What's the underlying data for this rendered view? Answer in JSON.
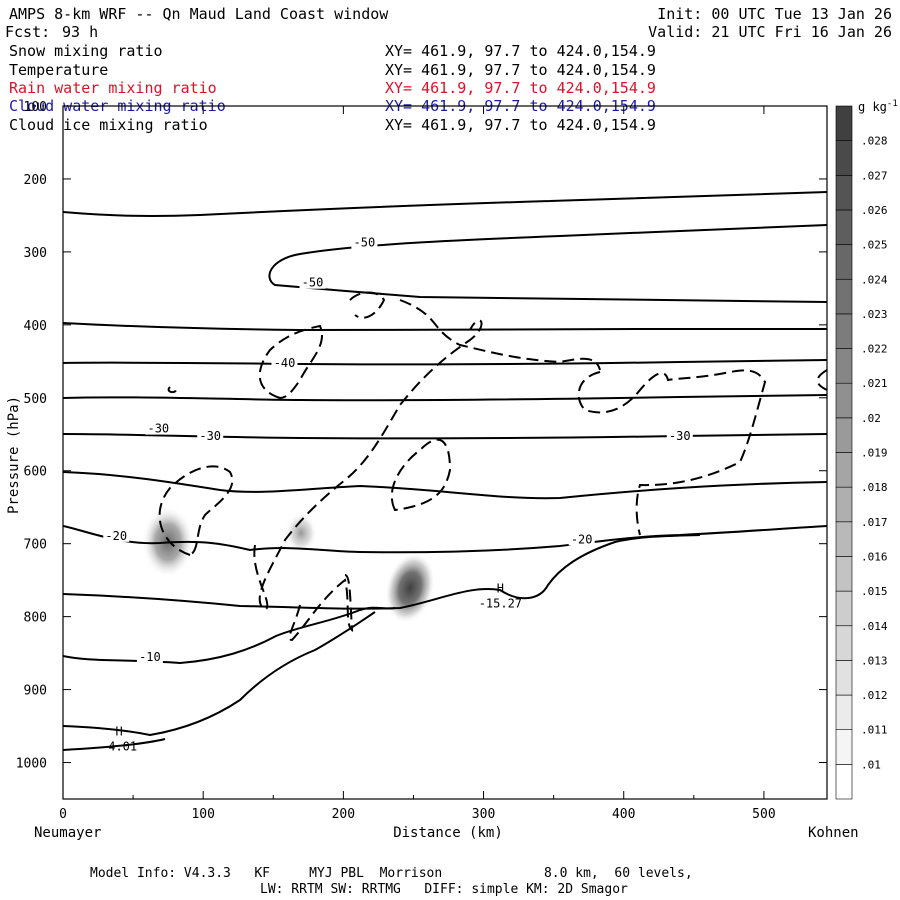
{
  "header": {
    "title": "AMPS 8-km WRF -- Qn Maud Land Coast window",
    "fcst_label": "Fcst:",
    "fcst_value": "93 h",
    "init": "Init: 00 UTC Tue 13 Jan 26",
    "valid": "Valid: 21 UTC Fri 16 Jan 26"
  },
  "fields": [
    {
      "name": "Snow mixing ratio",
      "xy": "XY= 461.9, 97.7 to 424.0,154.9",
      "color": "#000000"
    },
    {
      "name": "Temperature",
      "xy": "XY= 461.9, 97.7 to 424.0,154.9",
      "color": "#000000"
    },
    {
      "name": "Rain water mixing ratio",
      "xy": "XY= 461.9, 97.7 to 424.0,154.9",
      "color": "#e0102a"
    },
    {
      "name": "Cloud water mixing ratio",
      "xy": "XY= 461.9, 97.7 to 424.0,154.9",
      "color": "#1a1aa6"
    },
    {
      "name": "Cloud ice mixing ratio",
      "xy": "XY= 461.9, 97.7 to 424.0,154.9",
      "color": "#000000"
    }
  ],
  "footer": {
    "line1": "Model Info: V4.3.3   KF     MYJ PBL  Morrison             8.0 km,  60 levels,",
    "line2": "LW: RRTM SW: RRTMG   DIFF: simple KM: 2D Smagor"
  },
  "chart_data": {
    "type": "contour-cross-section",
    "xlabel": "Distance (km)",
    "ylabel": "Pressure (hPa)",
    "x_ticks": [
      0,
      100,
      200,
      300,
      400,
      500
    ],
    "y_ticks": [
      100,
      200,
      300,
      400,
      500,
      600,
      700,
      800,
      900,
      1000
    ],
    "xlim": [
      0,
      545
    ],
    "ylim": [
      100,
      1050
    ],
    "left_endpoint": "Neumayer",
    "right_endpoint": "Kohnen",
    "colorbar": {
      "unit": "g kg",
      "unit_exp": "-1",
      "ticks": [
        ".01",
        ".011",
        ".012",
        ".013",
        ".014",
        ".015",
        ".016",
        ".017",
        ".018",
        ".019",
        ".02",
        ".021",
        ".022",
        ".023",
        ".024",
        ".025",
        ".026",
        ".027",
        ".028"
      ]
    },
    "temperature_contour_labels": [
      {
        "text": "-50",
        "x": 215,
        "p": 290
      },
      {
        "text": "-50",
        "x": 178,
        "p": 345
      },
      {
        "text": "-40",
        "x": 158,
        "p": 455
      },
      {
        "text": "-30",
        "x": 68,
        "p": 545
      },
      {
        "text": "-30",
        "x": 105,
        "p": 555
      },
      {
        "text": "-30",
        "x": 440,
        "p": 555
      },
      {
        "text": "-20",
        "x": 38,
        "p": 692
      },
      {
        "text": "-20",
        "x": 370,
        "p": 697
      },
      {
        "text": "-10",
        "x": 62,
        "p": 858
      }
    ],
    "extrema": [
      {
        "marker": "H",
        "value": "-15.27",
        "x": 312,
        "p": 770
      },
      {
        "marker": "H",
        "value": "-4.01",
        "x": 40,
        "p": 966
      }
    ],
    "shaded_maxima_gkg": [
      {
        "x": 75,
        "p": 705,
        "max": 0.02
      },
      {
        "x": 170,
        "p": 690,
        "max": 0.013
      },
      {
        "x": 250,
        "p": 770,
        "max": 0.028
      }
    ]
  }
}
